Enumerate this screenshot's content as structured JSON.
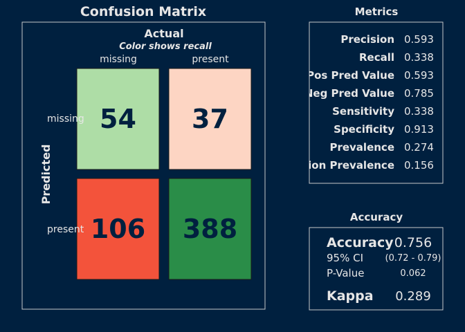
{
  "chart_data": {
    "type": "heatmap",
    "title": "Confusion Matrix",
    "top_axis_label": "Actual",
    "subtitle": "Color shows recall",
    "side_axis_label": "Predicted",
    "classes": [
      "missing",
      "present"
    ],
    "matrix": [
      [
        54,
        37
      ],
      [
        106,
        388
      ]
    ],
    "cell_colors": [
      [
        "#aedda6",
        "#fdd5c3"
      ],
      [
        "#f3533b",
        "#2a8d48"
      ]
    ],
    "metrics_title": "Metrics",
    "metrics": [
      {
        "label": "Precision",
        "value": "0.593"
      },
      {
        "label": "Recall",
        "value": "0.338"
      },
      {
        "label": "Pos Pred Value",
        "value": "0.593"
      },
      {
        "label": "Neg Pred Value",
        "value": "0.785"
      },
      {
        "label": "Sensitivity",
        "value": "0.338"
      },
      {
        "label": "Specificity",
        "value": "0.913"
      },
      {
        "label": "Prevalence",
        "value": "0.274"
      },
      {
        "label": "Detection Prevalence",
        "value": "0.156"
      }
    ],
    "accuracy_title": "Accuracy",
    "accuracy": {
      "label": "Accuracy",
      "value": "0.756",
      "ci_label": "95% CI",
      "ci_value": "(0.72 - 0.79)",
      "pvalue_label": "P-Value",
      "pvalue_value": "0.062",
      "kappa_label": "Kappa",
      "kappa_value": "0.289"
    }
  }
}
